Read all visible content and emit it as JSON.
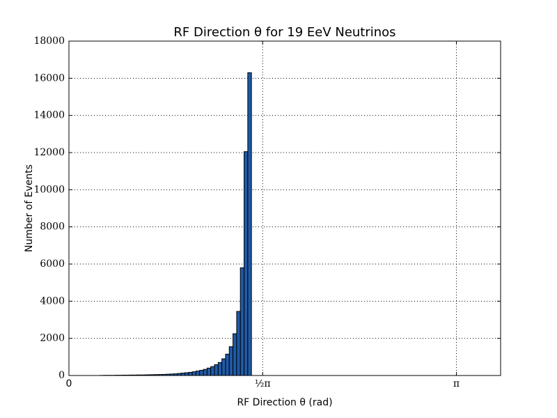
{
  "chart_data": {
    "type": "histogram",
    "title": "RF Direction θ for 19 EeV Neutrinos",
    "x_label": "RF Direction θ (rad)",
    "y_label": "Number of Events",
    "bins": [
      0.25,
      0.28,
      0.31,
      0.34,
      0.37,
      0.4,
      0.43,
      0.46,
      0.49,
      0.52,
      0.55,
      0.58,
      0.61,
      0.64,
      0.67,
      0.7,
      0.73,
      0.76,
      0.79,
      0.82,
      0.85,
      0.88,
      0.91,
      0.94,
      0.97,
      1.0,
      1.03,
      1.06,
      1.09,
      1.12,
      1.15,
      1.18,
      1.21,
      1.24,
      1.27,
      1.3,
      1.33,
      1.36,
      1.39,
      1.42,
      1.45,
      1.48
    ],
    "values": [
      5,
      10,
      10,
      10,
      15,
      15,
      20,
      20,
      25,
      25,
      30,
      30,
      35,
      40,
      45,
      50,
      55,
      60,
      70,
      80,
      90,
      110,
      130,
      150,
      170,
      200,
      240,
      280,
      330,
      400,
      480,
      580,
      700,
      900,
      1150,
      1550,
      2250,
      3450,
      5800,
      12050,
      16300
    ],
    "color": "#1f5aa6",
    "xlim": [
      0,
      3.5
    ],
    "ylim": [
      0,
      18000
    ],
    "xticks": [
      0,
      {
        "value": 1.5708,
        "label": "½π"
      },
      {
        "value": 3.1416,
        "label": "π"
      }
    ],
    "yticks": [
      0,
      2000,
      4000,
      6000,
      8000,
      10000,
      12000,
      14000,
      16000,
      18000
    ],
    "grid": true
  }
}
